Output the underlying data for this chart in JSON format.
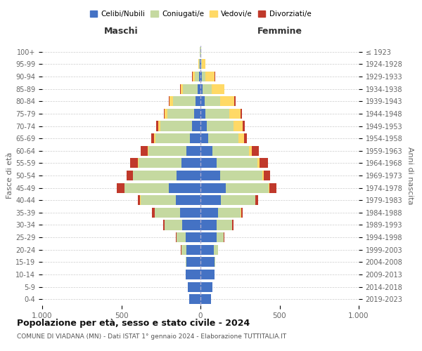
{
  "age_groups": [
    "0-4",
    "5-9",
    "10-14",
    "15-19",
    "20-24",
    "25-29",
    "30-34",
    "35-39",
    "40-44",
    "45-49",
    "50-54",
    "55-59",
    "60-64",
    "65-69",
    "70-74",
    "75-79",
    "80-84",
    "85-89",
    "90-94",
    "95-99",
    "100+"
  ],
  "birth_years": [
    "2019-2023",
    "2014-2018",
    "2009-2013",
    "2004-2008",
    "1999-2003",
    "1994-1998",
    "1989-1993",
    "1984-1988",
    "1979-1983",
    "1974-1978",
    "1969-1973",
    "1964-1968",
    "1959-1963",
    "1954-1958",
    "1949-1953",
    "1944-1948",
    "1939-1943",
    "1934-1938",
    "1929-1933",
    "1924-1928",
    "≤ 1923"
  ],
  "male": {
    "celibi": [
      70,
      80,
      95,
      90,
      90,
      95,
      115,
      130,
      155,
      200,
      150,
      120,
      90,
      65,
      55,
      40,
      30,
      20,
      10,
      5,
      2
    ],
    "coniugati": [
      0,
      0,
      0,
      5,
      30,
      55,
      110,
      160,
      225,
      280,
      275,
      270,
      240,
      220,
      200,
      170,
      145,
      90,
      25,
      5,
      2
    ],
    "vedovi": [
      0,
      0,
      0,
      0,
      1,
      1,
      1,
      1,
      2,
      2,
      3,
      5,
      5,
      8,
      10,
      15,
      20,
      15,
      15,
      5,
      1
    ],
    "divorziati": [
      0,
      0,
      0,
      0,
      2,
      5,
      10,
      15,
      15,
      45,
      40,
      50,
      45,
      20,
      15,
      8,
      5,
      3,
      2,
      0,
      0
    ]
  },
  "female": {
    "nubili": [
      65,
      75,
      90,
      90,
      85,
      100,
      100,
      110,
      130,
      160,
      125,
      100,
      75,
      50,
      40,
      30,
      25,
      15,
      10,
      5,
      2
    ],
    "coniugate": [
      0,
      0,
      0,
      5,
      25,
      45,
      100,
      145,
      215,
      270,
      265,
      260,
      230,
      190,
      170,
      150,
      100,
      55,
      20,
      5,
      1
    ],
    "vedove": [
      0,
      0,
      0,
      0,
      1,
      1,
      1,
      2,
      3,
      5,
      10,
      15,
      20,
      35,
      55,
      75,
      90,
      80,
      60,
      20,
      2
    ],
    "divorziate": [
      0,
      0,
      0,
      0,
      1,
      3,
      8,
      10,
      15,
      45,
      40,
      50,
      45,
      20,
      15,
      8,
      5,
      3,
      2,
      0,
      0
    ]
  },
  "colors": {
    "celibi": "#4472c4",
    "coniugati": "#c5d9a0",
    "vedovi": "#ffd966",
    "divorziati": "#c0392b"
  },
  "title": "Popolazione per età, sesso e stato civile - 2024",
  "subtitle": "COMUNE DI VIADANA (MN) - Dati ISTAT 1° gennaio 2024 - Elaborazione TUTTITALIA.IT",
  "xlabel_left": "Maschi",
  "xlabel_right": "Femmine",
  "ylabel_left": "Fasce di età",
  "ylabel_right": "Anni di nascita",
  "xlim": 1000,
  "legend_labels": [
    "Celibi/Nubili",
    "Coniugati/e",
    "Vedovi/e",
    "Divorziati/e"
  ],
  "bg_color": "#ffffff",
  "grid_color": "#cccccc"
}
